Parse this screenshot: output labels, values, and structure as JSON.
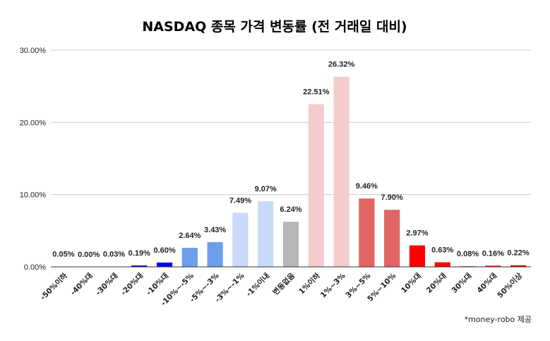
{
  "chart_data": {
    "type": "bar",
    "title": "NASDAQ 종목 가격 변동률 (전 거래일 대비)",
    "xlabel": "",
    "ylabel": "",
    "ylim": [
      0,
      30
    ],
    "yticks": [
      "0.00%",
      "10.00%",
      "20.00%",
      "30.00%"
    ],
    "grid": true,
    "legend": "none",
    "categories": [
      "-50%이하",
      "-40%대",
      "-30%대",
      "-20%대",
      "-10%대",
      "-10%~-5%",
      "-5%~-3%",
      "-3%~-1%",
      "-1%이내",
      "변동없음",
      "1%이하",
      "1%~3%",
      "3%~5%",
      "5%~10%",
      "10%대",
      "20%대",
      "30%대",
      "40%대",
      "50%이상"
    ],
    "values": [
      0.05,
      0.0,
      0.03,
      0.19,
      0.6,
      2.64,
      3.43,
      7.49,
      9.07,
      6.24,
      22.51,
      26.32,
      9.46,
      7.9,
      2.97,
      0.63,
      0.08,
      0.16,
      0.22
    ],
    "data_labels": [
      "0.05%",
      "0.00%",
      "0.03%",
      "0.19%",
      "0.60%",
      "2.64%",
      "3.43%",
      "7.49%",
      "9.07%",
      "6.24%",
      "22.51%",
      "26.32%",
      "9.46%",
      "7.90%",
      "2.97%",
      "0.63%",
      "0.08%",
      "0.16%",
      "0.22%"
    ],
    "colors": [
      "#0000ff",
      "#0000ff",
      "#0000ff",
      "#0000ff",
      "#0000ff",
      "#6d9eeb",
      "#6d9eeb",
      "#c9daf8",
      "#c9daf8",
      "#b7b7b7",
      "#f4cccc",
      "#f4cccc",
      "#e06666",
      "#e06666",
      "#ff0000",
      "#ff0000",
      "#ff0000",
      "#ff0000",
      "#ff0000"
    ],
    "note": "*money-robo 제공"
  }
}
